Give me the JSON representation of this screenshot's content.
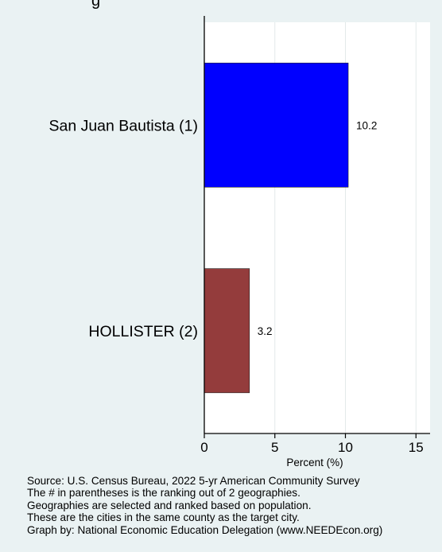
{
  "chart_data": {
    "type": "bar",
    "orientation": "horizontal",
    "categories": [
      "San Juan Bautista  (1)",
      "HOLLISTER  (2)"
    ],
    "values": [
      10.2,
      3.2
    ],
    "value_labels": [
      "10.2",
      "3.2"
    ],
    "bar_colors": [
      "#0000ff",
      "#943c3c"
    ],
    "xlabel": "Percent (%)",
    "xlim": [
      0,
      16
    ],
    "xticks": [
      0,
      5,
      10,
      15
    ],
    "xtick_labels": [
      "0",
      "5",
      "10",
      "15"
    ],
    "grid": true,
    "title_fragment": "g"
  },
  "footnotes": [
    "Source: U.S. Census Bureau, 2022 5-yr American Community Survey",
    "The # in parentheses is the ranking out of 2 geographies.",
    "Geographies are selected and ranked based on population.",
    "These are the cities in the same county as the target city.",
    "Graph by: National Economic Education Delegation (www.NEEDEcon.org)"
  ]
}
